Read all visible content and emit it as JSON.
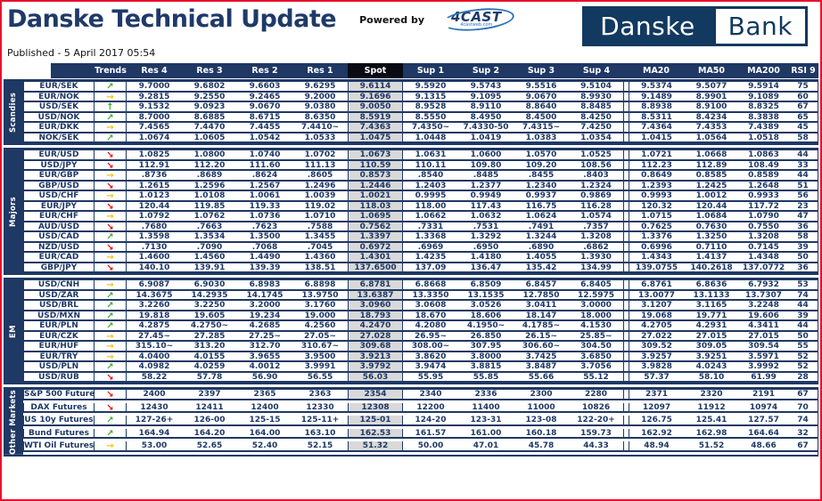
{
  "header": {
    "title": "Danske Technical Update",
    "powered_by": "Powered by",
    "logo_4cast": "4CAST",
    "logo_4cast_sub": "4castweb.com",
    "published": "Published - 5 April 2017 05:54",
    "bank_logo": {
      "left": "Danske",
      "right": "Bank"
    }
  },
  "colors": {
    "navy": "#1f3864",
    "spot_header_bg": "#0a0a14",
    "spot_cell_bg": "#d9d9d9",
    "page_border_red": "#e8112d",
    "trend_up_green": "#3faa34",
    "trend_flat_yellow": "#ffc000",
    "trend_down_red": "#ff0000"
  },
  "trend_arrows": {
    "up": {
      "glyph": "↑",
      "color": "#3faa34",
      "name": "up-arrow-icon"
    },
    "up-right": {
      "glyph": "↗",
      "color": "#3faa34",
      "name": "up-right-arrow-icon"
    },
    "right": {
      "glyph": "→",
      "color": "#ffc000",
      "name": "right-arrow-icon"
    },
    "down-right": {
      "glyph": "↘",
      "color": "#ff0000",
      "name": "down-right-arrow-icon"
    }
  },
  "table": {
    "columns": [
      "Trends",
      "Res 4",
      "Res 3",
      "Res 2",
      "Res 1",
      "Spot",
      "Sup 1",
      "Sup 2",
      "Sup 3",
      "Sup 4",
      "MA20",
      "MA50",
      "MA200",
      "RSI 9"
    ],
    "groups": [
      {
        "name": "Scandies",
        "rows": [
          {
            "pair": "EUR/SEK",
            "trend": "up-right",
            "values": [
              "9.7000",
              "9.6802",
              "9.6603",
              "9.6295",
              "9.6114",
              "9.5920",
              "9.5743",
              "9.5516",
              "9.5104",
              "9.5374",
              "9.5077",
              "9.5914",
              "75"
            ]
          },
          {
            "pair": "EUR/NOK",
            "trend": "right",
            "values": [
              "9.2815",
              "9.2550",
              "9.2465",
              "9.2000",
              "9.1696",
              "9.1315",
              "9.1095",
              "9.0670",
              "8.9930",
              "9.1489",
              "8.9901",
              "9.1089",
              "60"
            ]
          },
          {
            "pair": "USD/SEK",
            "trend": "up",
            "values": [
              "9.1532",
              "9.0923",
              "9.0670",
              "9.0380",
              "9.0050",
              "8.9528",
              "8.9110",
              "8.8640",
              "8.8485",
              "8.8938",
              "8.9100",
              "8.8325",
              "67"
            ]
          },
          {
            "pair": "USD/NOK",
            "trend": "up-right",
            "values": [
              "8.7000",
              "8.6885",
              "8.6715",
              "8.6350",
              "8.5919",
              "8.5550",
              "8.4950",
              "8.4500",
              "8.4250",
              "8.5311",
              "8.4234",
              "8.3838",
              "65"
            ]
          },
          {
            "pair": "EUR/DKK",
            "trend": "right",
            "values": [
              "7.4565",
              "7.4470",
              "7.4455",
              "7.4410~",
              "7.4363",
              "7.4350~",
              "7.4330-50",
              "7.4315~",
              "7.4250",
              "7.4364",
              "7.4353",
              "7.4389",
              "45"
            ]
          },
          {
            "pair": "NOK/SEK",
            "trend": "up-right",
            "values": [
              "1.0674",
              "1.0605",
              "1.0542",
              "1.0533",
              "1.0475",
              "1.0448",
              "1.0419",
              "1.0383",
              "1.0354",
              "1.0415",
              "1.0564",
              "1.0518",
              "58"
            ]
          }
        ]
      },
      {
        "name": "Majors",
        "rows": [
          {
            "pair": "EUR/USD",
            "trend": "down-right",
            "values": [
              "1.0825",
              "1.0800",
              "1.0740",
              "1.0702",
              "1.0673",
              "1.0631",
              "1.0600",
              "1.0570",
              "1.0525",
              "1.0721",
              "1.0668",
              "1.0863",
              "44"
            ]
          },
          {
            "pair": "USD/JPY",
            "trend": "down-right",
            "values": [
              "112.91",
              "112.20",
              "111.60",
              "111.13",
              "110.59",
              "110.11",
              "109.80",
              "109.20",
              "108.56",
              "112.23",
              "112.89",
              "108.49",
              "33"
            ]
          },
          {
            "pair": "EUR/GBP",
            "trend": "right",
            "values": [
              ".8736",
              ".8689",
              ".8624",
              ".8605",
              "0.8573",
              ".8540",
              ".8485",
              ".8455",
              ".8403",
              "0.8649",
              "0.8585",
              "0.8589",
              "44"
            ]
          },
          {
            "pair": "GBP/USD",
            "trend": "down-right",
            "values": [
              "1.2615",
              "1.2596",
              "1.2567",
              "1.2496",
              "1.2446",
              "1.2403",
              "1.2377",
              "1.2340",
              "1.2324",
              "1.2393",
              "1.2425",
              "1.2648",
              "51"
            ]
          },
          {
            "pair": "USD/CHF",
            "trend": "right",
            "values": [
              "1.0123",
              "1.0108",
              "1.0061",
              "1.0039",
              "1.0021",
              "0.9995",
              "0.9949",
              "0.9937",
              "0.9869",
              "0.9993",
              "1.0012",
              "0.9933",
              "56"
            ]
          },
          {
            "pair": "EUR/JPY",
            "trend": "down-right",
            "values": [
              "120.44",
              "119.85",
              "119.33",
              "119.02",
              "118.03",
              "118.00",
              "117.43",
              "116.75",
              "116.28",
              "120.32",
              "120.44",
              "117.72",
              "23"
            ]
          },
          {
            "pair": "EUR/CHF",
            "trend": "right",
            "values": [
              "1.0792",
              "1.0762",
              "1.0736",
              "1.0710",
              "1.0695",
              "1.0662",
              "1.0632",
              "1.0624",
              "1.0574",
              "1.0715",
              "1.0684",
              "1.0790",
              "47"
            ]
          },
          {
            "pair": "AUD/USD",
            "trend": "down-right",
            "values": [
              ".7680",
              ".7663",
              ".7623",
              ".7588",
              "0.7562",
              ".7331",
              ".7531",
              ".7491",
              ".7357",
              "0.7625",
              "0.7630",
              "0.7550",
              "36"
            ]
          },
          {
            "pair": "USD/CAD",
            "trend": "up-right",
            "values": [
              "1.3598",
              "1.3534",
              "1.3500",
              "1.3455",
              "1.3397",
              "1.3368",
              "1.3292",
              "1.3244",
              "1.3208",
              "1.3376",
              "1.3250",
              "1.3208",
              "58"
            ]
          },
          {
            "pair": "NZD/USD",
            "trend": "down-right",
            "values": [
              ".7130",
              ".7090",
              ".7068",
              ".7045",
              "0.6972",
              ".6969",
              ".6950",
              ".6890",
              ".6862",
              "0.6996",
              "0.7110",
              "0.7145",
              "39"
            ]
          },
          {
            "pair": "EUR/CAD",
            "trend": "right",
            "values": [
              "1.4600",
              "1.4560",
              "1.4490",
              "1.4360",
              "1.4301",
              "1.4235",
              "1.4180",
              "1.4055",
              "1.3930",
              "1.4343",
              "1.4137",
              "1.4348",
              "50"
            ]
          },
          {
            "pair": "GBP/JPY",
            "trend": "down-right",
            "values": [
              "140.10",
              "139.91",
              "139.39",
              "138.51",
              "137.6500",
              "137.09",
              "136.47",
              "135.42",
              "134.99",
              "139.0755",
              "140.2618",
              "137.0772",
              "36"
            ]
          }
        ]
      },
      {
        "name": "EM",
        "rows": [
          {
            "pair": "USD/CNH",
            "trend": "right",
            "values": [
              "6.9087",
              "6.9030",
              "6.8983",
              "6.8898",
              "6.8781",
              "6.8668",
              "6.8509",
              "6.8457",
              "6.8405",
              "6.8761",
              "6.8636",
              "6.7932",
              "53"
            ]
          },
          {
            "pair": "USD/ZAR",
            "trend": "up-right",
            "values": [
              "14.3675",
              "14.2935",
              "14.1745",
              "13.9750",
              "13.6387",
              "13.3350",
              "13.1535",
              "12.7850",
              "12.5975",
              "13.0077",
              "13.1133",
              "13.7307",
              "74"
            ]
          },
          {
            "pair": "USD/BRL",
            "trend": "up-right",
            "values": [
              "3.2260",
              "3.2250",
              "3.2000",
              "3.1760",
              "3.0960",
              "3.0608",
              "3.0526",
              "3.0411",
              "3.0000",
              "3.1207",
              "3.1165",
              "3.2248",
              "44"
            ]
          },
          {
            "pair": "USD/MXN",
            "trend": "up-right",
            "values": [
              "19.818",
              "19.605",
              "19.234",
              "19.000",
              "18.793",
              "18.670",
              "18.606",
              "18.147",
              "18.000",
              "19.068",
              "19.771",
              "19.606",
              "39"
            ]
          },
          {
            "pair": "EUR/PLN",
            "trend": "up-right",
            "values": [
              "4.2875",
              "4.2750~",
              "4.2685",
              "4.2560",
              "4.2470",
              "4.2080",
              "4.1950~",
              "4.1785~",
              "4.1530",
              "4.2705",
              "4.2931",
              "4.3411",
              "44"
            ]
          },
          {
            "pair": "EUR/CZK",
            "trend": "right",
            "values": [
              "27.45~",
              "27.285",
              "27.25~",
              "27.05~",
              "27.028",
              "26.95~",
              "26.850",
              "26.15~",
              "25.85~",
              "27.022",
              "27.015",
              "27.015",
              "50"
            ]
          },
          {
            "pair": "EUR/HUF",
            "trend": "right",
            "values": [
              "315.10~",
              "313.20",
              "312.70",
              "310.67~",
              "309.68",
              "308.00~",
              "307.95",
              "306.60~",
              "304.50",
              "309.52",
              "309.05",
              "309.54",
              "55"
            ]
          },
          {
            "pair": "EUR/TRY",
            "trend": "right",
            "values": [
              "4.0400",
              "4.0155",
              "3.9655",
              "3.9500",
              "3.9213",
              "3.8620",
              "3.8000",
              "3.7425",
              "3.6850",
              "3.9257",
              "3.9251",
              "3.5971",
              "52"
            ]
          },
          {
            "pair": "USD/PLN",
            "trend": "up-right",
            "values": [
              "4.0982",
              "4.0259",
              "4.0012",
              "3.9991",
              "3.9792",
              "3.9474",
              "3.8815",
              "3.8487",
              "3.7056",
              "3.9828",
              "4.0243",
              "3.9992",
              "52"
            ]
          },
          {
            "pair": "USD/RUB",
            "trend": "down-right",
            "values": [
              "58.22",
              "57.78",
              "56.90",
              "56.55",
              "56.03",
              "55.95",
              "55.85",
              "55.66",
              "55.12",
              "57.37",
              "58.10",
              "61.99",
              "28"
            ]
          }
        ]
      },
      {
        "name": "Other Markets",
        "rows": [
          {
            "pair": "S&P 500 Futures",
            "trend": "down-right",
            "values": [
              "2400",
              "2397",
              "2365",
              "2363",
              "2354",
              "2340",
              "2336",
              "2300",
              "2280",
              "2371",
              "2320",
              "2191",
              "67"
            ]
          },
          {
            "pair": "DAX Futures",
            "trend": "down-right",
            "values": [
              "12430",
              "12411",
              "12400",
              "12330",
              "12308",
              "12200",
              "11400",
              "11000",
              "10826",
              "12097",
              "11912",
              "10974",
              "70"
            ]
          },
          {
            "pair": "US 10y Futures",
            "trend": "up-right",
            "values": [
              "127-26+",
              "126-00",
              "125-15",
              "125-11+",
              "125-01",
              "124-20",
              "123-31",
              "123-08",
              "122-20+",
              "126.75",
              "125.41",
              "127.57",
              "74"
            ]
          },
          {
            "pair": "Bund Futures",
            "trend": "up-right",
            "values": [
              "164.94",
              "164.20",
              "164.00",
              "163.10",
              "162.53",
              "161.57",
              "161.00",
              "160.18",
              "159.73",
              "162.92",
              "162.98",
              "164.64",
              "32"
            ]
          },
          {
            "pair": "WTI Oil Futures",
            "trend": "right",
            "values": [
              "53.00",
              "52.65",
              "52.40",
              "52.15",
              "51.32",
              "50.00",
              "47.01",
              "45.78",
              "44.33",
              "48.94",
              "51.52",
              "48.66",
              "67"
            ]
          }
        ]
      }
    ]
  }
}
